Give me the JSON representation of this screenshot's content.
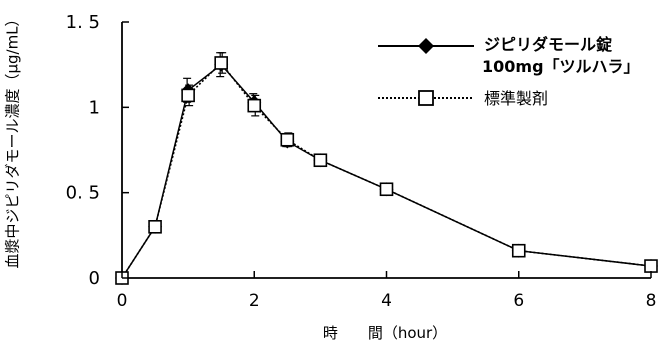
{
  "chart_data": {
    "type": "line",
    "xlabel": "時　　間（hour）",
    "ylabel": "血漿中ジピリダモール濃度（μg/mL）",
    "xlim": [
      0,
      8
    ],
    "ylim": [
      0,
      1.5
    ],
    "xticks": [
      0,
      2,
      4,
      6,
      8
    ],
    "xtick_labels": [
      "0",
      "2",
      "4",
      "6",
      "8"
    ],
    "yticks": [
      0,
      0.5,
      1,
      1.5
    ],
    "ytick_labels": [
      "0",
      "0. 5",
      "1",
      "1. 5"
    ],
    "grid": false,
    "legend_position": "top-right",
    "series": [
      {
        "name": "ジピリダモール錠100mg「ツルハラ」",
        "name_lines": [
          "ジピリダモール錠",
          "100mg「ツルハラ」"
        ],
        "marker": "diamond",
        "line_style": "solid",
        "x": [
          0,
          0.5,
          1,
          1.5,
          2,
          2.5,
          3,
          4,
          6,
          8
        ],
        "y": [
          0,
          0.3,
          1.1,
          1.25,
          1.03,
          0.8,
          0.69,
          0.52,
          0.16,
          0.07
        ],
        "err": [
          0,
          0,
          0.07,
          0.07,
          0.05,
          0.03,
          0,
          0,
          0,
          0
        ]
      },
      {
        "name": "標準製剤",
        "marker": "square",
        "line_style": "dotted",
        "x": [
          0,
          0.5,
          1,
          1.5,
          2,
          2.5,
          3,
          4,
          6,
          8
        ],
        "y": [
          0,
          0.3,
          1.07,
          1.26,
          1.01,
          0.81,
          0.69,
          0.52,
          0.16,
          0.07
        ],
        "err": [
          0,
          0,
          0.06,
          0.06,
          0.06,
          0.04,
          0,
          0,
          0,
          0
        ]
      }
    ]
  }
}
